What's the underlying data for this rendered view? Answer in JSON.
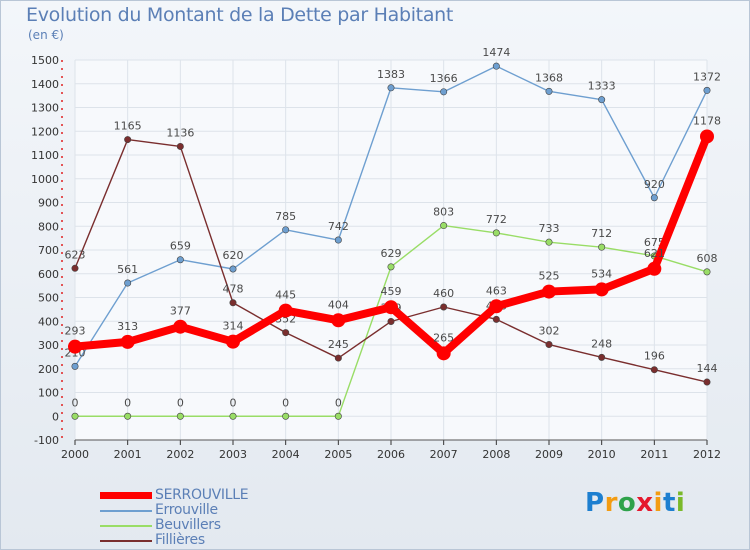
{
  "title": "Evolution du Montant de la Dette par Habitant",
  "subtitle": "(en €)",
  "logo_text": "Proxiti",
  "chart_data": {
    "type": "line",
    "title": "Evolution du Montant de la Dette par Habitant",
    "ylabel": "(en €)",
    "xlabel": "",
    "ylim": [
      -100,
      1500
    ],
    "yticks": [
      -100,
      0,
      100,
      200,
      300,
      400,
      500,
      600,
      700,
      800,
      900,
      1000,
      1100,
      1200,
      1300,
      1400,
      1500
    ],
    "grid": true,
    "legend_position": "bottom-left",
    "x": [
      "2000",
      "2001",
      "2002",
      "2003",
      "2004",
      "2005",
      "2006",
      "2007",
      "2008",
      "2009",
      "2010",
      "2011",
      "2012"
    ],
    "series": [
      {
        "name": "SERROUVILLE",
        "color": "#ff0000",
        "values": [
          293,
          313,
          377,
          314,
          445,
          404,
          459,
          265,
          463,
          525,
          534,
          621,
          1178
        ],
        "labels": [
          "293",
          "313",
          "377",
          "314",
          "445",
          "404",
          "459",
          "265",
          "463",
          "525",
          "534",
          "621",
          "1178"
        ]
      },
      {
        "name": "Errouville",
        "color": "#6e9fd0",
        "values": [
          210,
          561,
          659,
          620,
          785,
          742,
          1383,
          1366,
          1474,
          1368,
          1333,
          920,
          1372
        ],
        "labels": [
          "210",
          "561",
          "659",
          "620",
          "785",
          "742",
          "1383",
          "1366",
          "1474",
          "1368",
          "1333",
          "920",
          "1372"
        ]
      },
      {
        "name": "Beuvillers",
        "color": "#99dd66",
        "values": [
          0,
          0,
          0,
          0,
          0,
          0,
          629,
          803,
          772,
          733,
          712,
          675,
          608
        ],
        "labels": [
          "0",
          "0",
          "0",
          "0",
          "0",
          "0",
          "629",
          "803",
          "772",
          "733",
          "712",
          "675",
          "608"
        ]
      },
      {
        "name": "Fillières",
        "color": "#7a2e2e",
        "values": [
          623,
          1165,
          1136,
          478,
          352,
          245,
          399,
          460,
          408,
          302,
          248,
          196,
          144
        ],
        "labels": [
          "623",
          "1165",
          "1136",
          "478",
          "352",
          "245",
          "399",
          "460",
          "408",
          "302",
          "248",
          "196",
          "144"
        ]
      }
    ]
  }
}
